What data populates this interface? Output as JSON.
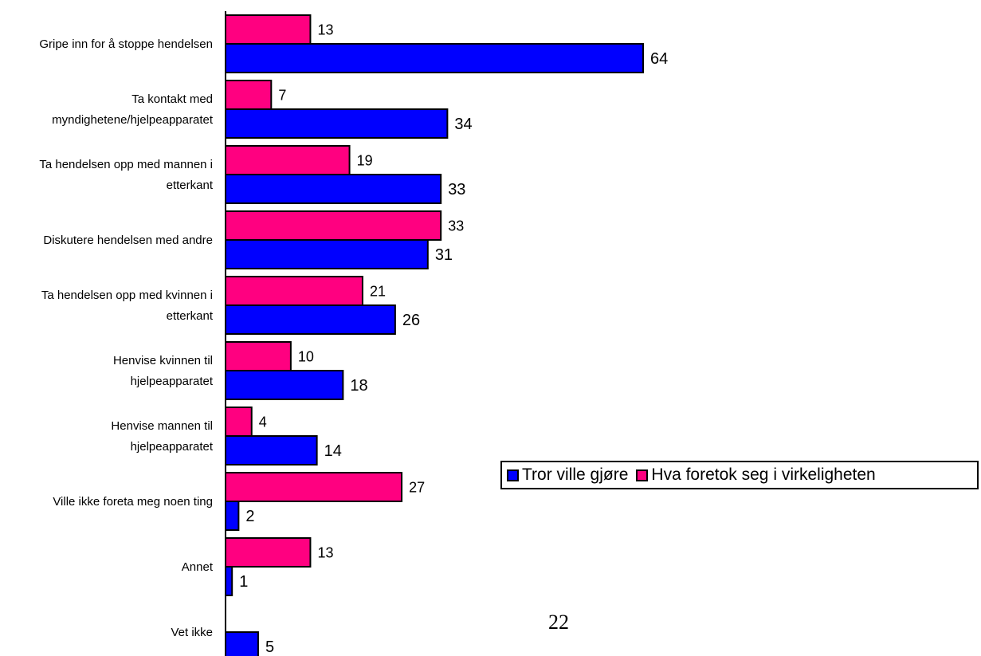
{
  "chart_data": {
    "type": "bar",
    "orientation": "horizontal",
    "categories": [
      [
        "Gripe inn for å stoppe hendelsen"
      ],
      [
        "Ta kontakt med",
        "myndighetene/hjelpeapparatet"
      ],
      [
        "Ta hendelsen opp med mannen i",
        "etterkant"
      ],
      [
        "Diskutere hendelsen med andre"
      ],
      [
        "Ta hendelsen opp med kvinnen i",
        "etterkant"
      ],
      [
        "Henvise kvinnen til",
        "hjelpeapparatet"
      ],
      [
        "Henvise mannen til",
        "hjelpeapparatet"
      ],
      [
        "Ville ikke foreta meg noen ting"
      ],
      [
        "Annet"
      ],
      [
        "Vet ikke"
      ]
    ],
    "series": [
      {
        "name": "Tror ville gjøre",
        "color": "#0000ff",
        "values": [
          64,
          34,
          33,
          31,
          26,
          18,
          14,
          2,
          1,
          5
        ],
        "labels": [
          "64",
          "34",
          "33",
          "31",
          "26",
          "18",
          "14",
          "2",
          "1",
          "5"
        ]
      },
      {
        "name": "Hva foretok seg i virkeligheten",
        "color": "#ff0080",
        "values": [
          13,
          7,
          19,
          33,
          21,
          10,
          4,
          27,
          13,
          null
        ],
        "labels": [
          "13",
          "7",
          "19",
          "33",
          "21",
          "10",
          "4",
          "27",
          "13",
          ""
        ]
      }
    ],
    "xlim": [
      0,
      65
    ],
    "grid": false,
    "legend_position": "right"
  },
  "page_number": "22"
}
